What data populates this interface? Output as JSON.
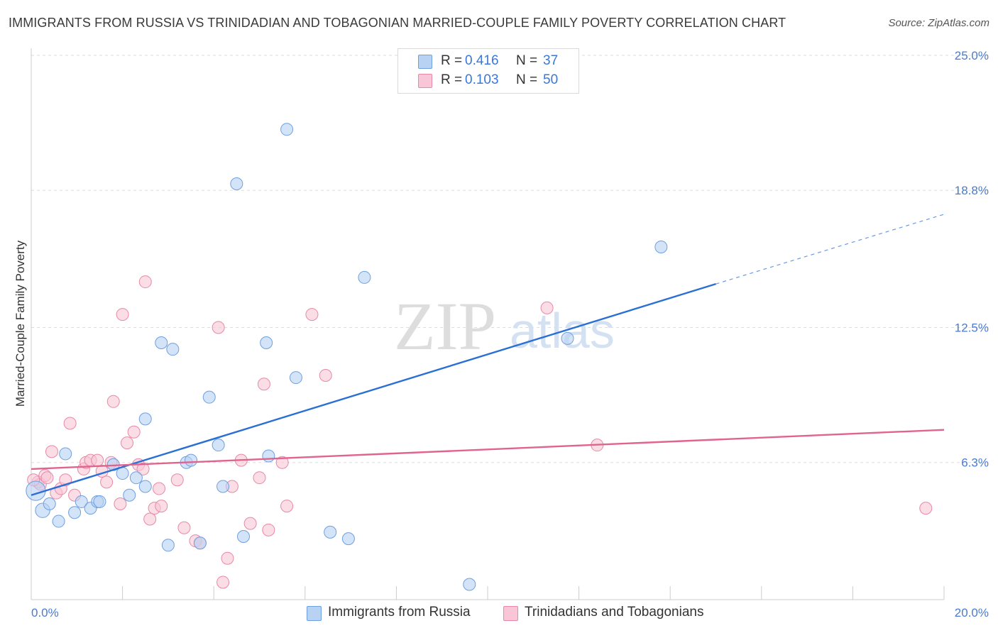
{
  "title": "IMMIGRANTS FROM RUSSIA VS TRINIDADIAN AND TOBAGONIAN MARRIED-COUPLE FAMILY POVERTY CORRELATION CHART",
  "source": "Source: ZipAtlas.com",
  "watermark": {
    "zip": "ZIP",
    "atlas": "atlas"
  },
  "legend": {
    "r_label": "R =",
    "n_label": "N =",
    "series": [
      {
        "name": "Immigrants from Russia",
        "r": "0.416",
        "n": "37"
      },
      {
        "name": "Trinidadians and Tobagonians",
        "r": "0.103",
        "n": "50"
      }
    ]
  },
  "colors": {
    "blue_fill": "#b8d2f3",
    "blue_stroke": "#6e9fe0",
    "blue_line": "#2a6fd3",
    "pink_fill": "#f8c6d6",
    "pink_stroke": "#e888a8",
    "pink_line": "#e0648e",
    "grid": "#dddddd",
    "tick_text": "#4a7bd0"
  },
  "chart_data": {
    "type": "scatter",
    "title": "IMMIGRANTS FROM RUSSIA VS TRINIDADIAN AND TOBAGONIAN MARRIED-COUPLE FAMILY POVERTY CORRELATION CHART",
    "xlabel": "",
    "ylabel": "Married-Couple Family Poverty",
    "xlim": [
      0,
      20
    ],
    "ylim": [
      0,
      25
    ],
    "x_tick_labels": [
      "0.0%",
      "20.0%"
    ],
    "y_ticks": [
      6.3,
      12.5,
      18.8,
      25.0
    ],
    "y_tick_labels": [
      "6.3%",
      "12.5%",
      "18.8%",
      "25.0%"
    ],
    "series": [
      {
        "name": "Immigrants from Russia",
        "points": [
          [
            0.1,
            5.0,
            1.6
          ],
          [
            0.25,
            4.1,
            1.2
          ],
          [
            0.4,
            4.4,
            1.0
          ],
          [
            0.6,
            3.6,
            1.0
          ],
          [
            0.75,
            6.7,
            1.0
          ],
          [
            0.95,
            4.0,
            1.0
          ],
          [
            1.1,
            4.5,
            1.0
          ],
          [
            1.3,
            4.2,
            1.0
          ],
          [
            1.45,
            4.5,
            1.0
          ],
          [
            1.5,
            4.5,
            1.0
          ],
          [
            1.8,
            6.2,
            1.0
          ],
          [
            2.0,
            5.8,
            1.0
          ],
          [
            2.15,
            4.8,
            1.0
          ],
          [
            2.3,
            5.6,
            1.0
          ],
          [
            2.5,
            8.3,
            1.0
          ],
          [
            2.5,
            5.2,
            1.0
          ],
          [
            2.85,
            11.8,
            1.0
          ],
          [
            3.0,
            2.5,
            1.0
          ],
          [
            3.1,
            11.5,
            1.0
          ],
          [
            3.4,
            6.3,
            1.0
          ],
          [
            3.5,
            6.4,
            1.0
          ],
          [
            3.7,
            2.6,
            1.0
          ],
          [
            3.9,
            9.3,
            1.0
          ],
          [
            4.1,
            7.1,
            1.0
          ],
          [
            4.2,
            5.2,
            1.0
          ],
          [
            4.5,
            19.1,
            1.0
          ],
          [
            4.65,
            2.9,
            1.0
          ],
          [
            5.15,
            11.8,
            1.0
          ],
          [
            5.2,
            6.6,
            1.0
          ],
          [
            5.6,
            21.6,
            1.0
          ],
          [
            5.8,
            10.2,
            1.0
          ],
          [
            6.55,
            3.1,
            1.0
          ],
          [
            6.95,
            2.8,
            1.0
          ],
          [
            7.3,
            14.8,
            1.0
          ],
          [
            9.6,
            0.7,
            1.0
          ],
          [
            11.75,
            12.0,
            1.0
          ],
          [
            13.8,
            16.2,
            1.0
          ]
        ],
        "trend": {
          "x0": 0,
          "y0": 4.8,
          "x1": 15.0,
          "y1": 14.5,
          "x_dash_end": 20,
          "y_dash_end": 17.7
        }
      },
      {
        "name": "Trinidadians and Tobagonians",
        "points": [
          [
            0.15,
            5.4,
            1.0
          ],
          [
            0.2,
            5.3,
            1.0
          ],
          [
            0.3,
            5.7,
            1.0
          ],
          [
            0.35,
            5.6,
            1.0
          ],
          [
            0.45,
            6.8,
            1.0
          ],
          [
            0.55,
            4.9,
            1.0
          ],
          [
            0.65,
            5.1,
            1.0
          ],
          [
            0.75,
            5.5,
            1.0
          ],
          [
            0.85,
            8.1,
            1.0
          ],
          [
            0.95,
            4.8,
            1.0
          ],
          [
            1.15,
            6.0,
            1.0
          ],
          [
            1.2,
            6.3,
            1.0
          ],
          [
            1.3,
            6.4,
            1.0
          ],
          [
            1.45,
            6.4,
            1.0
          ],
          [
            1.55,
            5.9,
            1.0
          ],
          [
            1.65,
            5.4,
            1.0
          ],
          [
            1.75,
            6.3,
            1.0
          ],
          [
            1.8,
            9.1,
            1.0
          ],
          [
            1.95,
            4.4,
            1.0
          ],
          [
            2.0,
            13.1,
            1.0
          ],
          [
            2.1,
            7.2,
            1.0
          ],
          [
            2.25,
            7.7,
            1.0
          ],
          [
            2.35,
            6.2,
            1.0
          ],
          [
            2.45,
            6.0,
            1.0
          ],
          [
            2.5,
            14.6,
            1.0
          ],
          [
            2.6,
            3.7,
            1.0
          ],
          [
            2.7,
            4.2,
            1.0
          ],
          [
            2.8,
            5.1,
            1.0
          ],
          [
            2.85,
            4.3,
            1.0
          ],
          [
            3.2,
            5.5,
            1.0
          ],
          [
            3.35,
            3.3,
            1.0
          ],
          [
            3.6,
            2.7,
            1.0
          ],
          [
            3.7,
            2.6,
            1.0
          ],
          [
            4.1,
            12.5,
            1.0
          ],
          [
            4.2,
            0.8,
            1.0
          ],
          [
            4.3,
            1.9,
            1.0
          ],
          [
            4.4,
            5.2,
            1.0
          ],
          [
            4.6,
            6.4,
            1.0
          ],
          [
            4.8,
            3.5,
            1.0
          ],
          [
            5.0,
            5.6,
            1.0
          ],
          [
            5.1,
            9.9,
            1.0
          ],
          [
            5.2,
            3.2,
            1.0
          ],
          [
            5.5,
            6.3,
            1.0
          ],
          [
            5.6,
            4.3,
            1.0
          ],
          [
            6.15,
            13.1,
            1.0
          ],
          [
            6.45,
            10.3,
            1.0
          ],
          [
            11.3,
            13.4,
            1.0
          ],
          [
            12.4,
            7.1,
            1.0
          ],
          [
            19.6,
            4.2,
            1.0
          ],
          [
            0.05,
            5.5,
            1.0
          ]
        ],
        "trend": {
          "x0": 0,
          "y0": 6.0,
          "x1": 20,
          "y1": 7.8
        }
      }
    ]
  }
}
